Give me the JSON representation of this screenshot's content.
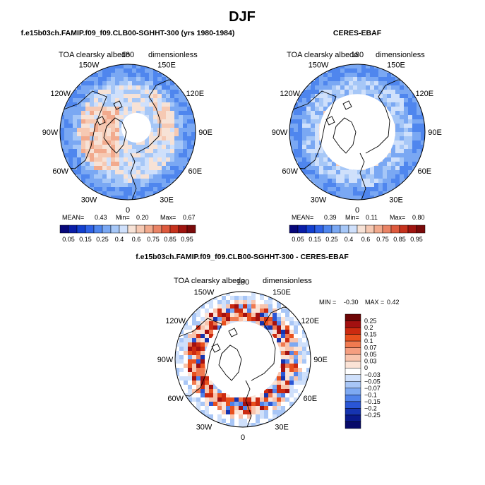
{
  "chart_data": [
    {
      "type": "heatmap",
      "projection": "north-polar-stereographic",
      "season": "DJF",
      "title": "f.e15b03ch.FAMIP.f09_f09.CLB00-SGHHT-300 (yrs 1980-1984)",
      "variable": "TOA clearsky albedo",
      "units": "dimensionless",
      "longitude_labels": [
        "180",
        "150E",
        "120E",
        "90E",
        "60E",
        "30E",
        "0",
        "30W",
        "60W",
        "90W",
        "120W",
        "150W"
      ],
      "stats": {
        "mean_label": "MEAN=",
        "mean": "0.43",
        "min_label": "Min=",
        "min": "0.20",
        "max_label": "Max=",
        "max": "0.67"
      },
      "colorbar_ticks": [
        "0.05",
        "0.15",
        "0.25",
        "0.4",
        "0.6",
        "0.75",
        "0.85",
        "0.95"
      ],
      "missing_center": true
    },
    {
      "type": "heatmap",
      "projection": "north-polar-stereographic",
      "title": "CERES-EBAF",
      "variable": "TOA clearsky albedo",
      "units": "dimensionless",
      "longitude_labels": [
        "180",
        "150E",
        "120E",
        "90E",
        "60E",
        "30E",
        "0",
        "30W",
        "60W",
        "90W",
        "120W",
        "150W"
      ],
      "stats": {
        "mean_label": "MEAN=",
        "mean": "0.39",
        "min_label": "Min=",
        "min": "0.11",
        "max_label": "Max=",
        "max": "0.80"
      },
      "colorbar_ticks": [
        "0.05",
        "0.15",
        "0.25",
        "0.4",
        "0.6",
        "0.75",
        "0.85",
        "0.95"
      ],
      "missing_center": true
    },
    {
      "type": "heatmap",
      "projection": "north-polar-stereographic",
      "title": "f.e15b03ch.FAMIP.f09_f09.CLB00-SGHHT-300 - CERES-EBAF",
      "variable": "TOA clearsky albedo",
      "units": "dimensionless",
      "longitude_labels": [
        "180",
        "150E",
        "120E",
        "90E",
        "60E",
        "30E",
        "0",
        "30W",
        "60W",
        "90W",
        "120W",
        "150W"
      ],
      "stats": {
        "min_label": "MIN =",
        "min": "-0.30",
        "max_label": "MAX =",
        "max": "0.42"
      },
      "colorbar_ticks": [
        "0.25",
        "0.2",
        "0.15",
        "0.1",
        "0.07",
        "0.05",
        "0.03",
        "0",
        "-0.03",
        "-0.05",
        "-0.07",
        "-0.1",
        "-0.15",
        "-0.2",
        "-0.25"
      ],
      "missing_center": true
    }
  ],
  "figure_title": "DJF",
  "colors": {
    "albedo_scale": [
      "#08087a",
      "#0a1ea8",
      "#1440cf",
      "#2f62e6",
      "#4f86ee",
      "#7aa8f3",
      "#a6c7f7",
      "#cfe0fb",
      "#f7e2d6",
      "#f6c9b3",
      "#f2aa8d",
      "#ea8466",
      "#de5a3e",
      "#c6321d",
      "#a01510",
      "#7a0a0a"
    ],
    "diff_scale": [
      "#6e0606",
      "#a31010",
      "#cc2a10",
      "#e8501e",
      "#f07a50",
      "#f59e80",
      "#f8c4ad",
      "#fbe3d6",
      "#ffffff",
      "#cfe0fb",
      "#a8c6f6",
      "#7ea9f2",
      "#5082ea",
      "#2a56d6",
      "#1634b0",
      "#0a1a8c",
      "#070a6a"
    ]
  }
}
